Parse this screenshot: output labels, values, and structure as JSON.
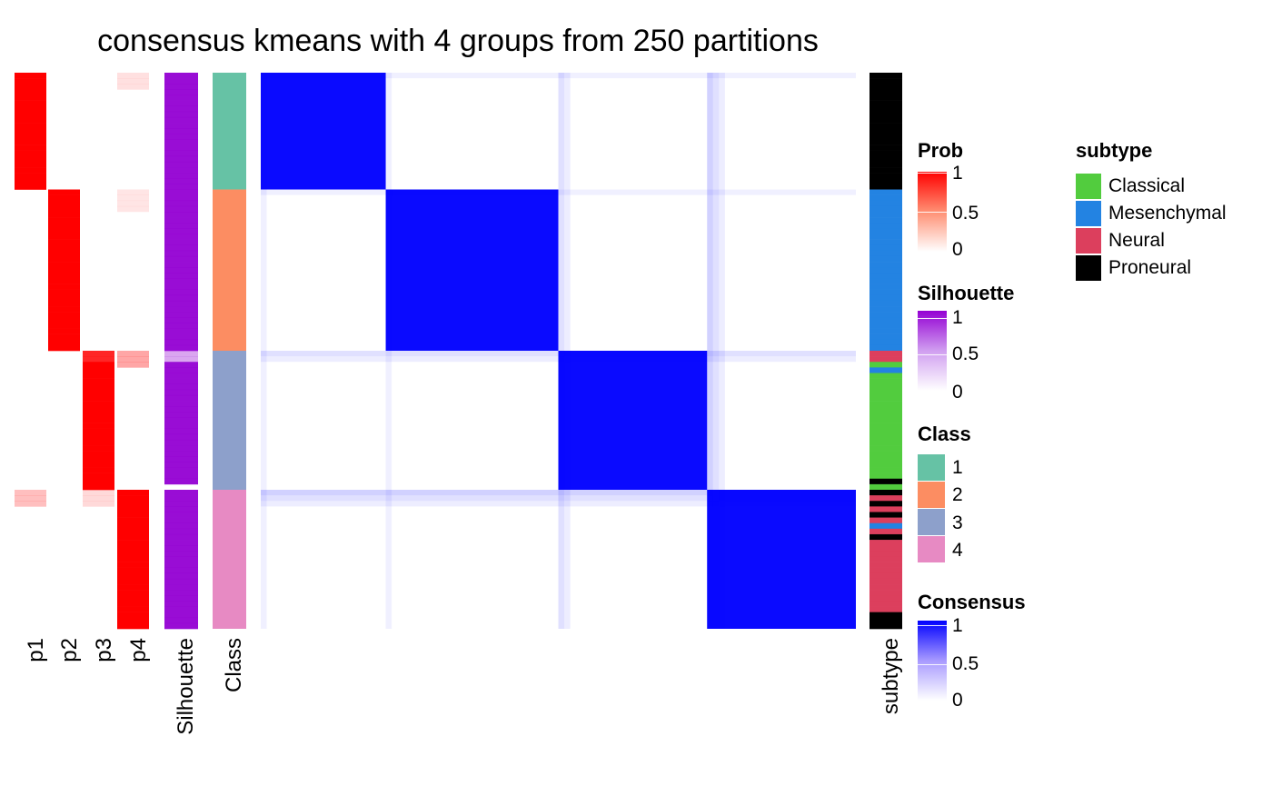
{
  "chart_data": {
    "type": "heatmap",
    "title": "consensus kmeans with 4 groups from 250 partitions",
    "n_samples": 100,
    "class_sizes": [
      21,
      29,
      25,
      25
    ],
    "columns": [
      "p1",
      "p2",
      "p3",
      "p4",
      "Silhouette",
      "Class",
      "subtype"
    ],
    "class_levels": [
      "1",
      "2",
      "3",
      "4"
    ],
    "class_colors": [
      "#66c2a5",
      "#fc8d62",
      "#8da0cb",
      "#e78ac3"
    ],
    "prob_color": "#ff0000",
    "silhouette_color": "#9400d3",
    "consensus_color": "#0000ff",
    "subtype_levels": [
      "Classical",
      "Mesenchymal",
      "Neural",
      "Proneural"
    ],
    "subtype_colors": [
      "#52cc3e",
      "#2383e2",
      "#dc3f5d",
      "#000000"
    ],
    "subtype_sequence": "PPPPPPPPPPPPPPPPPPPPPMMMMMMMMMMMMMMMMMMMMMMMMMMMMMNNCMCCCCCCCCCCCCCCCCCCCPCPNPNPNMNPNNNNNNNNNNNNNPPP",
    "silhouette_gap_index": 74
  },
  "legends": {
    "prob": {
      "title": "Prob",
      "ticks": [
        "1",
        "0.5",
        "0"
      ]
    },
    "silhouette": {
      "title": "Silhouette",
      "ticks": [
        "1",
        "0.5",
        "0"
      ]
    },
    "class": {
      "title": "Class",
      "items": [
        "1",
        "2",
        "3",
        "4"
      ]
    },
    "consensus": {
      "title": "Consensus",
      "ticks": [
        "1",
        "0.5",
        "0"
      ]
    },
    "subtype": {
      "title": "subtype",
      "items": [
        "Classical",
        "Mesenchymal",
        "Neural",
        "Proneural"
      ]
    }
  }
}
